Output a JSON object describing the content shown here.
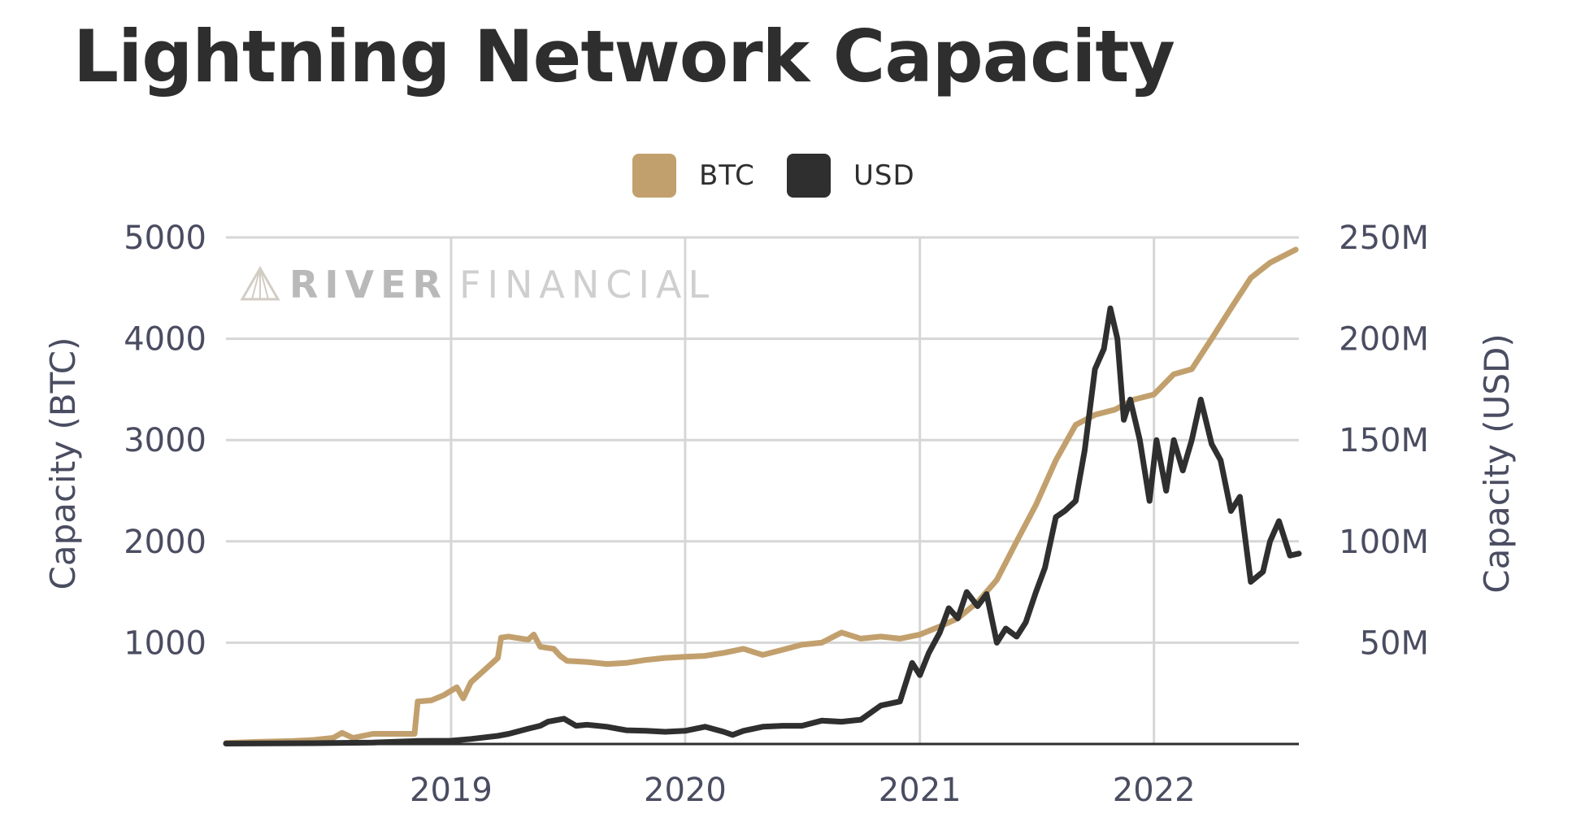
{
  "chart_data": {
    "type": "line",
    "title": "Lightning Network Capacity",
    "x_ticks": [
      "2019",
      "2020",
      "2021",
      "2022"
    ],
    "ylabel_left": "Capacity (BTC)",
    "ylabel_right": "Capacity (USD)",
    "y_left_ticks": [
      "1000",
      "2000",
      "3000",
      "4000",
      "5000"
    ],
    "y_right_ticks": [
      "50M",
      "100M",
      "150M",
      "200M",
      "250M"
    ],
    "y_left_range": [
      0,
      5000
    ],
    "y_right_range": [
      0,
      250000000
    ],
    "x_range": [
      "2018-01-15",
      "2022-08-15"
    ],
    "grid": true,
    "legend_position": "top-center",
    "watermark": {
      "bold": "RIVER",
      "light": "FINANCIAL"
    },
    "series": [
      {
        "name": "BTC",
        "axis": "left",
        "color": "#c2a06d",
        "points": [
          [
            "2018-01-15",
            10
          ],
          [
            "2018-03-01",
            20
          ],
          [
            "2018-05-01",
            30
          ],
          [
            "2018-06-01",
            40
          ],
          [
            "2018-07-01",
            60
          ],
          [
            "2018-07-15",
            110
          ],
          [
            "2018-08-01",
            60
          ],
          [
            "2018-09-01",
            100
          ],
          [
            "2018-10-01",
            100
          ],
          [
            "2018-11-05",
            100
          ],
          [
            "2018-11-10",
            420
          ],
          [
            "2018-12-01",
            430
          ],
          [
            "2018-12-20",
            480
          ],
          [
            "2019-01-10",
            560
          ],
          [
            "2019-01-20",
            450
          ],
          [
            "2019-02-01",
            610
          ],
          [
            "2019-03-01",
            770
          ],
          [
            "2019-03-15",
            850
          ],
          [
            "2019-03-20",
            1050
          ],
          [
            "2019-04-01",
            1060
          ],
          [
            "2019-05-01",
            1030
          ],
          [
            "2019-05-10",
            1080
          ],
          [
            "2019-05-20",
            960
          ],
          [
            "2019-06-10",
            940
          ],
          [
            "2019-06-20",
            870
          ],
          [
            "2019-07-01",
            820
          ],
          [
            "2019-08-01",
            810
          ],
          [
            "2019-09-01",
            790
          ],
          [
            "2019-10-01",
            800
          ],
          [
            "2019-11-01",
            830
          ],
          [
            "2019-12-01",
            850
          ],
          [
            "2020-01-01",
            860
          ],
          [
            "2020-02-01",
            870
          ],
          [
            "2020-03-01",
            900
          ],
          [
            "2020-04-01",
            940
          ],
          [
            "2020-05-01",
            880
          ],
          [
            "2020-06-01",
            930
          ],
          [
            "2020-07-01",
            980
          ],
          [
            "2020-08-01",
            1000
          ],
          [
            "2020-09-01",
            1100
          ],
          [
            "2020-10-01",
            1040
          ],
          [
            "2020-11-01",
            1060
          ],
          [
            "2020-12-01",
            1040
          ],
          [
            "2021-01-01",
            1080
          ],
          [
            "2021-02-01",
            1160
          ],
          [
            "2021-03-01",
            1240
          ],
          [
            "2021-04-01",
            1400
          ],
          [
            "2021-05-01",
            1620
          ],
          [
            "2021-06-01",
            2000
          ],
          [
            "2021-07-01",
            2360
          ],
          [
            "2021-08-01",
            2800
          ],
          [
            "2021-09-01",
            3150
          ],
          [
            "2021-10-01",
            3250
          ],
          [
            "2021-11-01",
            3300
          ],
          [
            "2021-12-01",
            3400
          ],
          [
            "2022-01-01",
            3450
          ],
          [
            "2022-02-01",
            3650
          ],
          [
            "2022-03-01",
            3700
          ],
          [
            "2022-04-01",
            4000
          ],
          [
            "2022-05-01",
            4300
          ],
          [
            "2022-06-01",
            4600
          ],
          [
            "2022-07-01",
            4750
          ],
          [
            "2022-08-10",
            4880
          ]
        ]
      },
      {
        "name": "USD",
        "axis": "right",
        "color": "#2f2f2f",
        "points": [
          [
            "2018-01-15",
            200000
          ],
          [
            "2018-06-01",
            400000
          ],
          [
            "2018-09-01",
            700000
          ],
          [
            "2018-11-10",
            1500000
          ],
          [
            "2019-01-01",
            1600000
          ],
          [
            "2019-02-01",
            2500000
          ],
          [
            "2019-03-15",
            4000000
          ],
          [
            "2019-04-01",
            5000000
          ],
          [
            "2019-05-01",
            7500000
          ],
          [
            "2019-05-20",
            9000000
          ],
          [
            "2019-06-01",
            11000000
          ],
          [
            "2019-06-26",
            12500000
          ],
          [
            "2019-07-15",
            9000000
          ],
          [
            "2019-08-01",
            9500000
          ],
          [
            "2019-09-01",
            8500000
          ],
          [
            "2019-10-01",
            6800000
          ],
          [
            "2019-11-01",
            6500000
          ],
          [
            "2019-12-01",
            6000000
          ],
          [
            "2020-01-01",
            6500000
          ],
          [
            "2020-02-01",
            8500000
          ],
          [
            "2020-03-01",
            6000000
          ],
          [
            "2020-03-15",
            4500000
          ],
          [
            "2020-04-01",
            6500000
          ],
          [
            "2020-05-01",
            8500000
          ],
          [
            "2020-06-01",
            9000000
          ],
          [
            "2020-07-01",
            9000000
          ],
          [
            "2020-08-01",
            11500000
          ],
          [
            "2020-09-01",
            11000000
          ],
          [
            "2020-10-01",
            12000000
          ],
          [
            "2020-11-01",
            19000000
          ],
          [
            "2020-12-01",
            21000000
          ],
          [
            "2020-12-20",
            40000000
          ],
          [
            "2021-01-01",
            34000000
          ],
          [
            "2021-01-15",
            45000000
          ],
          [
            "2021-02-01",
            55000000
          ],
          [
            "2021-02-15",
            67000000
          ],
          [
            "2021-03-01",
            62000000
          ],
          [
            "2021-03-15",
            75000000
          ],
          [
            "2021-04-01",
            68000000
          ],
          [
            "2021-04-15",
            74000000
          ],
          [
            "2021-05-01",
            50000000
          ],
          [
            "2021-05-15",
            57000000
          ],
          [
            "2021-06-01",
            53000000
          ],
          [
            "2021-06-15",
            60000000
          ],
          [
            "2021-07-01",
            75000000
          ],
          [
            "2021-07-15",
            87000000
          ],
          [
            "2021-08-01",
            112000000
          ],
          [
            "2021-08-15",
            115000000
          ],
          [
            "2021-09-01",
            120000000
          ],
          [
            "2021-09-15",
            145000000
          ],
          [
            "2021-10-01",
            185000000
          ],
          [
            "2021-10-15",
            195000000
          ],
          [
            "2021-10-25",
            215000000
          ],
          [
            "2021-11-05",
            200000000
          ],
          [
            "2021-11-15",
            160000000
          ],
          [
            "2021-11-25",
            170000000
          ],
          [
            "2021-12-10",
            150000000
          ],
          [
            "2021-12-25",
            120000000
          ],
          [
            "2022-01-05",
            150000000
          ],
          [
            "2022-01-20",
            125000000
          ],
          [
            "2022-02-01",
            150000000
          ],
          [
            "2022-02-15",
            135000000
          ],
          [
            "2022-03-01",
            150000000
          ],
          [
            "2022-03-15",
            170000000
          ],
          [
            "2022-04-01",
            148000000
          ],
          [
            "2022-04-15",
            140000000
          ],
          [
            "2022-05-01",
            115000000
          ],
          [
            "2022-05-15",
            122000000
          ],
          [
            "2022-06-01",
            80000000
          ],
          [
            "2022-06-20",
            85000000
          ],
          [
            "2022-07-01",
            100000000
          ],
          [
            "2022-07-15",
            110000000
          ],
          [
            "2022-08-01",
            93000000
          ],
          [
            "2022-08-15",
            94000000
          ]
        ]
      }
    ]
  }
}
